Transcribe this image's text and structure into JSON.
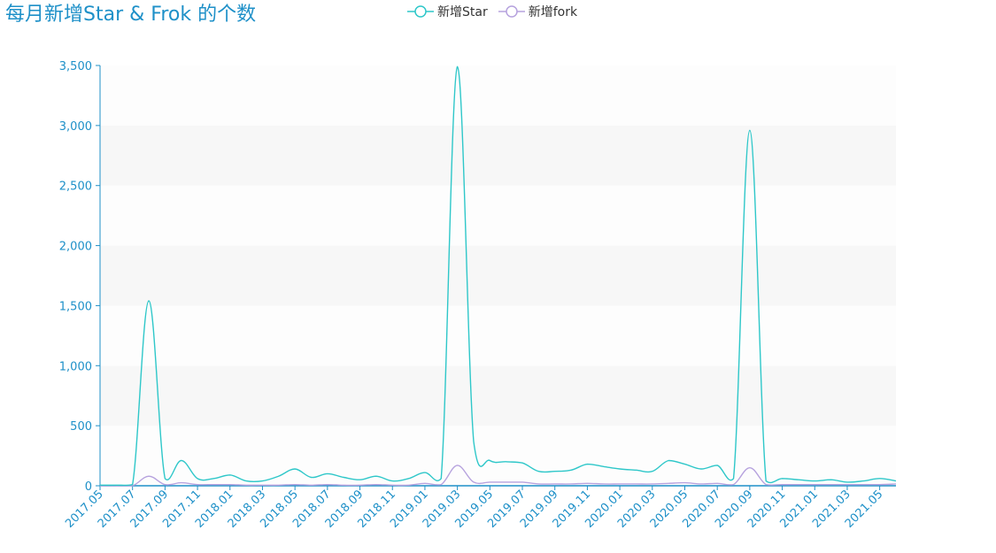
{
  "title": "每月新增Star & Frok 的个数",
  "colors": {
    "title": "#1e90c8",
    "axis": "#1e90c8",
    "star": "#2ec7c9",
    "fork": "#b6a2de",
    "band": "#f7f7f7",
    "band_alt": "#fdfdfd"
  },
  "legend": [
    {
      "name": "新增Star",
      "color": "#2ec7c9",
      "icon": "circle-line-icon"
    },
    {
      "name": "新增fork",
      "color": "#b6a2de",
      "icon": "circle-line-icon"
    }
  ],
  "chart_data": {
    "type": "line",
    "smooth": true,
    "ylim": [
      0,
      3500
    ],
    "yticks": [
      0,
      500,
      1000,
      1500,
      2000,
      2500,
      3000,
      3500
    ],
    "ytick_labels": [
      "0",
      "500",
      "1,000",
      "1,500",
      "2,000",
      "2,500",
      "3,000",
      "3,500"
    ],
    "x": [
      "2017.05",
      "2017.06",
      "2017.07",
      "2017.08",
      "2017.09",
      "2017.10",
      "2017.11",
      "2017.12",
      "2018.01",
      "2018.02",
      "2018.03",
      "2018.04",
      "2018.05",
      "2018.06",
      "2018.07",
      "2018.08",
      "2018.09",
      "2018.10",
      "2018.11",
      "2018.12",
      "2019.01",
      "2019.02",
      "2019.03",
      "2019.04",
      "2019.05",
      "2019.06",
      "2019.07",
      "2019.08",
      "2019.09",
      "2019.10",
      "2019.11",
      "2019.12",
      "2020.01",
      "2020.02",
      "2020.03",
      "2020.04",
      "2020.05",
      "2020.06",
      "2020.07",
      "2020.08",
      "2020.09",
      "2020.10",
      "2020.11",
      "2020.12",
      "2021.01",
      "2021.02",
      "2021.03",
      "2021.04",
      "2021.05",
      "2021.06"
    ],
    "xtick_labels": [
      "2017.05",
      "2017.07",
      "2017.09",
      "2017.11",
      "2018.01",
      "2018.03",
      "2018.05",
      "2018.07",
      "2018.09",
      "2018.11",
      "2019.01",
      "2019.03",
      "2019.05",
      "2019.07",
      "2019.09",
      "2019.11",
      "2020.01",
      "2020.03",
      "2020.05",
      "2020.07",
      "2020.09",
      "2020.11",
      "2021.01",
      "2021.03",
      "2021.05"
    ],
    "grid": "horizontal bands",
    "legend_position": "top-center",
    "series": [
      {
        "name": "新增Star",
        "color": "#2ec7c9",
        "values": [
          5,
          5,
          10,
          1540,
          60,
          210,
          60,
          60,
          90,
          40,
          40,
          80,
          140,
          70,
          100,
          70,
          50,
          80,
          40,
          60,
          110,
          60,
          3490,
          370,
          210,
          200,
          190,
          120,
          120,
          130,
          180,
          160,
          140,
          130,
          120,
          210,
          180,
          140,
          170,
          60,
          2960,
          40,
          60,
          50,
          40,
          50,
          30,
          40,
          60,
          40
        ]
      },
      {
        "name": "新增fork",
        "color": "#b6a2de",
        "values": [
          0,
          0,
          0,
          80,
          10,
          25,
          10,
          10,
          10,
          5,
          5,
          5,
          10,
          5,
          10,
          5,
          5,
          10,
          5,
          5,
          20,
          10,
          170,
          30,
          30,
          30,
          30,
          15,
          15,
          15,
          20,
          15,
          15,
          15,
          15,
          20,
          25,
          15,
          20,
          10,
          150,
          10,
          10,
          10,
          10,
          10,
          10,
          10,
          10,
          15
        ]
      }
    ]
  }
}
